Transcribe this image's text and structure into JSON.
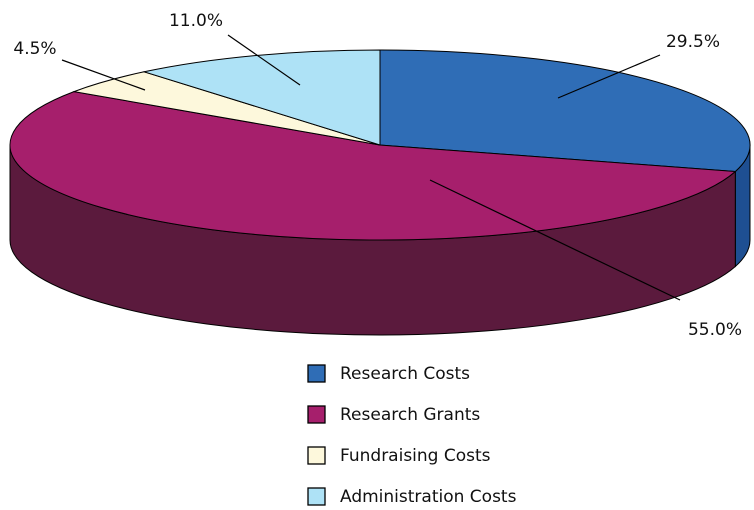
{
  "chart_data": {
    "type": "pie",
    "categories": [
      "Research Costs",
      "Research Grants",
      "Fundraising Costs",
      "Administration Costs"
    ],
    "values": [
      29.5,
      55.0,
      4.5,
      11.0
    ],
    "value_labels": [
      "29.5%",
      "55.0%",
      "4.5%",
      "11.0%"
    ],
    "colors": [
      "#2f6db6",
      "#a61f6c",
      "#fdf8dc",
      "#aee2f6"
    ],
    "side_colors": [
      "#1e4f92",
      "#5b1a3d",
      "#c9c3a8",
      "#7fb6cc"
    ],
    "legend": "bottom"
  }
}
